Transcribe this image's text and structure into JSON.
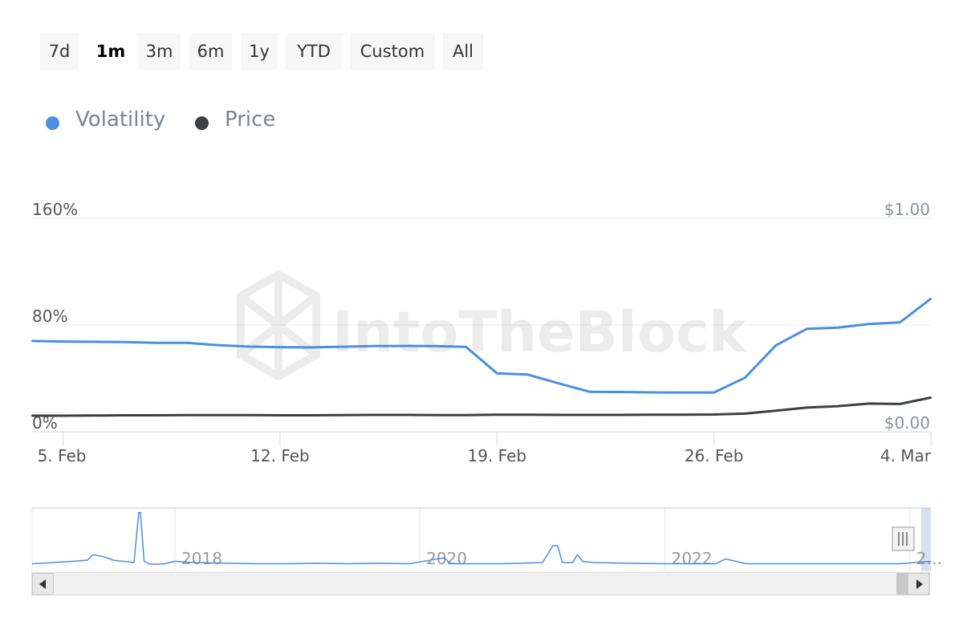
{
  "range_selector": {
    "buttons": [
      {
        "label": "7d",
        "active": false
      },
      {
        "label": "1m",
        "active": true
      },
      {
        "label": "3m",
        "active": false
      },
      {
        "label": "6m",
        "active": false
      },
      {
        "label": "1y",
        "active": false
      },
      {
        "label": "YTD",
        "active": false
      },
      {
        "label": "Custom",
        "active": false
      },
      {
        "label": "All",
        "active": false
      }
    ]
  },
  "legend": {
    "items": [
      {
        "label": "Volatility",
        "color": "#4a8fe0"
      },
      {
        "label": "Price",
        "color": "#3b4045"
      }
    ]
  },
  "watermark": "IntoTheBlock",
  "chart_data": {
    "type": "line",
    "x_start": "2024-02-04",
    "x_end": "2024-03-04",
    "x_tick_labels": [
      "5. Feb",
      "12. Feb",
      "19. Feb",
      "26. Feb",
      "4. Mar"
    ],
    "x_tick_dates": [
      "2024-02-05",
      "2024-02-12",
      "2024-02-19",
      "2024-02-26",
      "2024-03-04"
    ],
    "y_left": {
      "ticks": [
        "160%",
        "80%",
        "0%"
      ],
      "min": 0,
      "max": 160,
      "unit": "%"
    },
    "y_right": {
      "ticks": [
        "$1.00",
        "$0.00"
      ],
      "min": 0,
      "max": 1.0,
      "unit": "$"
    },
    "grid": true,
    "legend_position": "top-left",
    "series": [
      {
        "name": "Volatility",
        "axis": "left",
        "color": "#4a8fe0",
        "x": [
          "2024-02-04",
          "2024-02-05",
          "2024-02-06",
          "2024-02-07",
          "2024-02-08",
          "2024-02-09",
          "2024-02-10",
          "2024-02-11",
          "2024-02-12",
          "2024-02-13",
          "2024-02-14",
          "2024-02-15",
          "2024-02-16",
          "2024-02-17",
          "2024-02-18",
          "2024-02-19",
          "2024-02-20",
          "2024-02-21",
          "2024-02-22",
          "2024-02-23",
          "2024-02-24",
          "2024-02-25",
          "2024-02-26",
          "2024-02-27",
          "2024-02-28",
          "2024-02-29",
          "2024-03-01",
          "2024-03-02",
          "2024-03-03",
          "2024-03-04"
        ],
        "values": [
          68,
          67.6,
          67.4,
          67.2,
          66.6,
          66.6,
          64.9,
          63.8,
          63.4,
          63.2,
          63.7,
          64.2,
          64.3,
          64.2,
          63.6,
          43.8,
          42.8,
          36.2,
          29.9,
          29.8,
          29.5,
          29.4,
          29.4,
          40.5,
          64.8,
          77.2,
          78.0,
          80.8,
          82.0,
          99.7
        ]
      },
      {
        "name": "Price",
        "axis": "right",
        "color": "#3b4045",
        "x": [
          "2024-02-04",
          "2024-02-05",
          "2024-02-06",
          "2024-02-07",
          "2024-02-08",
          "2024-02-09",
          "2024-02-10",
          "2024-02-11",
          "2024-02-12",
          "2024-02-13",
          "2024-02-14",
          "2024-02-15",
          "2024-02-16",
          "2024-02-17",
          "2024-02-18",
          "2024-02-19",
          "2024-02-20",
          "2024-02-21",
          "2024-02-22",
          "2024-02-23",
          "2024-02-24",
          "2024-02-25",
          "2024-02-26",
          "2024-02-27",
          "2024-02-28",
          "2024-02-29",
          "2024-03-01",
          "2024-03-02",
          "2024-03-03",
          "2024-03-04"
        ],
        "values": [
          0.075,
          0.075,
          0.076,
          0.077,
          0.077,
          0.078,
          0.078,
          0.078,
          0.077,
          0.077,
          0.078,
          0.079,
          0.079,
          0.078,
          0.078,
          0.08,
          0.08,
          0.079,
          0.079,
          0.079,
          0.08,
          0.08,
          0.081,
          0.085,
          0.099,
          0.113,
          0.12,
          0.132,
          0.13,
          0.16
        ]
      }
    ],
    "navigator": {
      "year_labels": [
        "2018",
        "2020",
        "2022",
        "2…"
      ],
      "year_label_dates": [
        "2018-01-01",
        "2020-01-01",
        "2022-01-01",
        "2024-01-01"
      ],
      "x_start": "2016-11-01",
      "x_end": "2024-03-04",
      "series": {
        "name": "Volatility",
        "color": "#4a8fe0",
        "x": [
          "2016-11-01",
          "2017-01-01",
          "2017-03-01",
          "2017-04-15",
          "2017-05-01",
          "2017-06-01",
          "2017-07-01",
          "2017-08-01",
          "2017-09-01",
          "2017-09-15",
          "2017-09-20",
          "2017-10-01",
          "2017-10-15",
          "2017-11-01",
          "2017-12-01",
          "2018-01-01",
          "2018-03-01",
          "2018-06-01",
          "2018-09-01",
          "2018-12-01",
          "2019-03-01",
          "2019-06-01",
          "2019-09-01",
          "2019-12-01",
          "2020-03-15",
          "2020-04-01",
          "2020-06-01",
          "2020-09-01",
          "2021-01-01",
          "2021-02-01",
          "2021-02-15",
          "2021-03-01",
          "2021-04-01",
          "2021-04-15",
          "2021-05-01",
          "2021-06-01",
          "2021-09-01",
          "2022-01-01",
          "2022-06-01",
          "2022-07-01",
          "2022-09-01",
          "2023-01-01",
          "2023-06-01",
          "2023-12-01",
          "2024-03-04"
        ],
        "values": [
          10,
          12,
          14,
          16,
          25,
          22,
          16,
          14,
          12,
          95,
          95,
          14,
          10,
          9,
          10,
          14,
          12,
          11,
          10,
          10,
          11,
          10,
          11,
          10,
          20,
          10,
          10,
          10,
          12,
          40,
          40,
          12,
          12,
          25,
          14,
          12,
          11,
          10,
          10,
          18,
          10,
          10,
          10,
          10,
          14
        ]
      }
    }
  }
}
